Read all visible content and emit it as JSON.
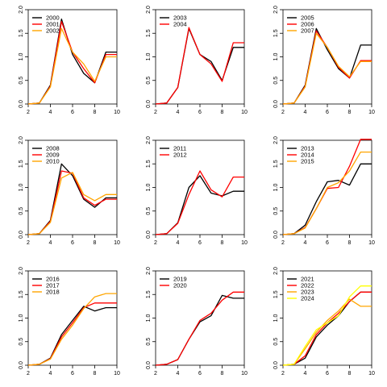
{
  "chart_data": [
    {
      "type": "line",
      "x": [
        2,
        3,
        4,
        5,
        6,
        7,
        8,
        9,
        10
      ],
      "xlim": [
        2,
        10
      ],
      "ylim": [
        0,
        2
      ],
      "xticks": [
        2,
        4,
        6,
        8,
        10
      ],
      "yticks": [
        0,
        0.5,
        1,
        1.5,
        2
      ],
      "xtick_labels": [
        "2",
        "4",
        "6",
        "8",
        "10"
      ],
      "ytick_labels": [
        "0.0",
        "0.5",
        "1.0",
        "1.5",
        "2.0"
      ],
      "legend_position": "top-left",
      "series": [
        {
          "name": "2000",
          "color": "#000000",
          "values": [
            0,
            0.02,
            0.4,
            1.8,
            1.05,
            0.65,
            0.45,
            1.1,
            1.1
          ]
        },
        {
          "name": "2001",
          "color": "#ff0000",
          "values": [
            0,
            0.02,
            0.38,
            1.75,
            1.1,
            0.75,
            0.45,
            1.05,
            1.05
          ]
        },
        {
          "name": "2002",
          "color": "#ffa500",
          "values": [
            0,
            0.02,
            0.36,
            1.6,
            1.1,
            0.85,
            0.48,
            1.0,
            1.0
          ]
        }
      ]
    },
    {
      "type": "line",
      "x": [
        2,
        3,
        4,
        5,
        6,
        7,
        8,
        9,
        10
      ],
      "xlim": [
        2,
        10
      ],
      "ylim": [
        0,
        2
      ],
      "xticks": [
        2,
        4,
        6,
        8,
        10
      ],
      "yticks": [
        0,
        0.5,
        1,
        1.5,
        2
      ],
      "xtick_labels": [
        "2",
        "4",
        "6",
        "8",
        "10"
      ],
      "ytick_labels": [
        "0.0",
        "0.5",
        "1.0",
        "1.5",
        "2.0"
      ],
      "legend_position": "top-left",
      "series": [
        {
          "name": "2003",
          "color": "#000000",
          "values": [
            0,
            0.02,
            0.35,
            1.6,
            1.05,
            0.9,
            0.5,
            1.2,
            1.2
          ]
        },
        {
          "name": "2004",
          "color": "#ff0000",
          "values": [
            0,
            0.02,
            0.35,
            1.62,
            1.05,
            0.85,
            0.48,
            1.3,
            1.3
          ]
        }
      ]
    },
    {
      "type": "line",
      "x": [
        2,
        3,
        4,
        5,
        6,
        7,
        8,
        9,
        10
      ],
      "xlim": [
        2,
        10
      ],
      "ylim": [
        0,
        2
      ],
      "xticks": [
        2,
        4,
        6,
        8,
        10
      ],
      "yticks": [
        0,
        0.5,
        1,
        1.5,
        2
      ],
      "xtick_labels": [
        "2",
        "4",
        "6",
        "8",
        "10"
      ],
      "ytick_labels": [
        "0.0",
        "0.5",
        "1.0",
        "1.5",
        "2.0"
      ],
      "legend_position": "top-left",
      "series": [
        {
          "name": "2005",
          "color": "#000000",
          "values": [
            0,
            0.02,
            0.4,
            1.6,
            1.15,
            0.75,
            0.55,
            1.25,
            1.25
          ]
        },
        {
          "name": "2006",
          "color": "#ff0000",
          "values": [
            0,
            0.02,
            0.38,
            1.55,
            1.2,
            0.78,
            0.55,
            0.92,
            0.92
          ]
        },
        {
          "name": "2007",
          "color": "#ffa500",
          "values": [
            0,
            0.02,
            0.36,
            1.5,
            1.2,
            0.8,
            0.58,
            0.9,
            0.9
          ]
        }
      ]
    },
    {
      "type": "line",
      "x": [
        2,
        3,
        4,
        5,
        6,
        7,
        8,
        9,
        10
      ],
      "xlim": [
        2,
        10
      ],
      "ylim": [
        0,
        2
      ],
      "xticks": [
        2,
        4,
        6,
        8,
        10
      ],
      "yticks": [
        0,
        0.5,
        1,
        1.5,
        2
      ],
      "xtick_labels": [
        "2",
        "4",
        "6",
        "8",
        "10"
      ],
      "ytick_labels": [
        "0.0",
        "0.5",
        "1.0",
        "1.5",
        "2.0"
      ],
      "legend_position": "top-left",
      "series": [
        {
          "name": "2008",
          "color": "#000000",
          "values": [
            0,
            0.02,
            0.3,
            1.5,
            1.25,
            0.75,
            0.58,
            0.78,
            0.78
          ]
        },
        {
          "name": "2009",
          "color": "#ff0000",
          "values": [
            0,
            0.02,
            0.28,
            1.35,
            1.3,
            0.78,
            0.62,
            0.75,
            0.75
          ]
        },
        {
          "name": "2010",
          "color": "#ffa500",
          "values": [
            0,
            0.02,
            0.26,
            1.2,
            1.32,
            0.85,
            0.72,
            0.85,
            0.85
          ]
        }
      ]
    },
    {
      "type": "line",
      "x": [
        2,
        3,
        4,
        5,
        6,
        7,
        8,
        9,
        10
      ],
      "xlim": [
        2,
        10
      ],
      "ylim": [
        0,
        2
      ],
      "xticks": [
        2,
        4,
        6,
        8,
        10
      ],
      "yticks": [
        0,
        0.5,
        1,
        1.5,
        2
      ],
      "xtick_labels": [
        "2",
        "4",
        "6",
        "8",
        "10"
      ],
      "ytick_labels": [
        "0.0",
        "0.5",
        "1.0",
        "1.5",
        "2.0"
      ],
      "legend_position": "top-left",
      "series": [
        {
          "name": "2011",
          "color": "#000000",
          "values": [
            0,
            0.02,
            0.25,
            1.0,
            1.25,
            0.88,
            0.82,
            0.92,
            0.92
          ]
        },
        {
          "name": "2012",
          "color": "#ff0000",
          "values": [
            0,
            0.02,
            0.24,
            0.85,
            1.35,
            0.95,
            0.8,
            1.22,
            1.22
          ]
        }
      ]
    },
    {
      "type": "line",
      "x": [
        2,
        3,
        4,
        5,
        6,
        7,
        8,
        9,
        10
      ],
      "xlim": [
        2,
        10
      ],
      "ylim": [
        0,
        2
      ],
      "xticks": [
        2,
        4,
        6,
        8,
        10
      ],
      "yticks": [
        0,
        0.5,
        1,
        1.5,
        2
      ],
      "xtick_labels": [
        "2",
        "4",
        "6",
        "8",
        "10"
      ],
      "ytick_labels": [
        "0.0",
        "0.5",
        "1.0",
        "1.5",
        "2.0"
      ],
      "legend_position": "top-left",
      "series": [
        {
          "name": "2013",
          "color": "#000000",
          "values": [
            0,
            0.02,
            0.2,
            0.7,
            1.12,
            1.15,
            1.05,
            1.5,
            1.5
          ]
        },
        {
          "name": "2014",
          "color": "#ff0000",
          "values": [
            0,
            0.02,
            0.15,
            0.55,
            0.98,
            1.0,
            1.45,
            2.02,
            2.02
          ]
        },
        {
          "name": "2015",
          "color": "#ffa500",
          "values": [
            0,
            0.02,
            0.14,
            0.55,
            1.0,
            1.1,
            1.35,
            1.75,
            1.75
          ]
        }
      ]
    },
    {
      "type": "line",
      "x": [
        2,
        3,
        4,
        5,
        6,
        7,
        8,
        9,
        10
      ],
      "xlim": [
        2,
        10
      ],
      "ylim": [
        0,
        2
      ],
      "xticks": [
        2,
        4,
        6,
        8,
        10
      ],
      "yticks": [
        0,
        0.5,
        1,
        1.5,
        2
      ],
      "xtick_labels": [
        "2",
        "4",
        "6",
        "8",
        "10"
      ],
      "ytick_labels": [
        "0.0",
        "0.5",
        "1.0",
        "1.5",
        "2.0"
      ],
      "legend_position": "top-left",
      "series": [
        {
          "name": "2016",
          "color": "#000000",
          "values": [
            0,
            0.02,
            0.15,
            0.65,
            0.95,
            1.25,
            1.15,
            1.22,
            1.22
          ]
        },
        {
          "name": "2017",
          "color": "#ff0000",
          "values": [
            0,
            0.02,
            0.14,
            0.6,
            0.9,
            1.22,
            1.32,
            1.32,
            1.32
          ]
        },
        {
          "name": "2018",
          "color": "#ffa500",
          "values": [
            0,
            0.02,
            0.13,
            0.55,
            0.85,
            1.2,
            1.45,
            1.52,
            1.52
          ]
        }
      ]
    },
    {
      "type": "line",
      "x": [
        2,
        3,
        4,
        5,
        6,
        7,
        8,
        9,
        10
      ],
      "xlim": [
        2,
        10
      ],
      "ylim": [
        0,
        2
      ],
      "xticks": [
        2,
        4,
        6,
        8,
        10
      ],
      "yticks": [
        0,
        0.5,
        1,
        1.5,
        2
      ],
      "xtick_labels": [
        "2",
        "4",
        "6",
        "8",
        "10"
      ],
      "ytick_labels": [
        "0.0",
        "0.5",
        "1.0",
        "1.5",
        "2.0"
      ],
      "legend_position": "top-left",
      "series": [
        {
          "name": "2019",
          "color": "#000000",
          "values": [
            0,
            0.02,
            0.12,
            0.55,
            0.92,
            1.05,
            1.48,
            1.42,
            1.42
          ]
        },
        {
          "name": "2020",
          "color": "#ff0000",
          "values": [
            0,
            0.02,
            0.12,
            0.55,
            0.95,
            1.1,
            1.38,
            1.55,
            1.55
          ]
        }
      ]
    },
    {
      "type": "line",
      "x": [
        2,
        3,
        4,
        5,
        6,
        7,
        8,
        9,
        10
      ],
      "xlim": [
        2,
        10
      ],
      "ylim": [
        0,
        2
      ],
      "xticks": [
        2,
        4,
        6,
        8,
        10
      ],
      "yticks": [
        0,
        0.5,
        1,
        1.5,
        2
      ],
      "xtick_labels": [
        "2",
        "4",
        "6",
        "8",
        "10"
      ],
      "ytick_labels": [
        "0.0",
        "0.5",
        "1.0",
        "1.5",
        "2.0"
      ],
      "legend_position": "top-left",
      "series": [
        {
          "name": "2021",
          "color": "#000000",
          "values": [
            0,
            0.02,
            0.15,
            0.6,
            0.85,
            1.05,
            1.35,
            1.55,
            1.55
          ]
        },
        {
          "name": "2022",
          "color": "#ff0000",
          "values": [
            0,
            0.02,
            0.2,
            0.65,
            0.9,
            1.1,
            1.35,
            1.55,
            1.55
          ]
        },
        {
          "name": "2023",
          "color": "#ffa500",
          "values": [
            0,
            0.02,
            0.35,
            0.7,
            0.95,
            1.15,
            1.4,
            1.25,
            1.25
          ]
        },
        {
          "name": "2024",
          "color": "#ffff00",
          "values": [
            0,
            0.02,
            0.4,
            0.75,
            0.9,
            1.05,
            1.45,
            1.68,
            1.68
          ]
        }
      ]
    }
  ]
}
